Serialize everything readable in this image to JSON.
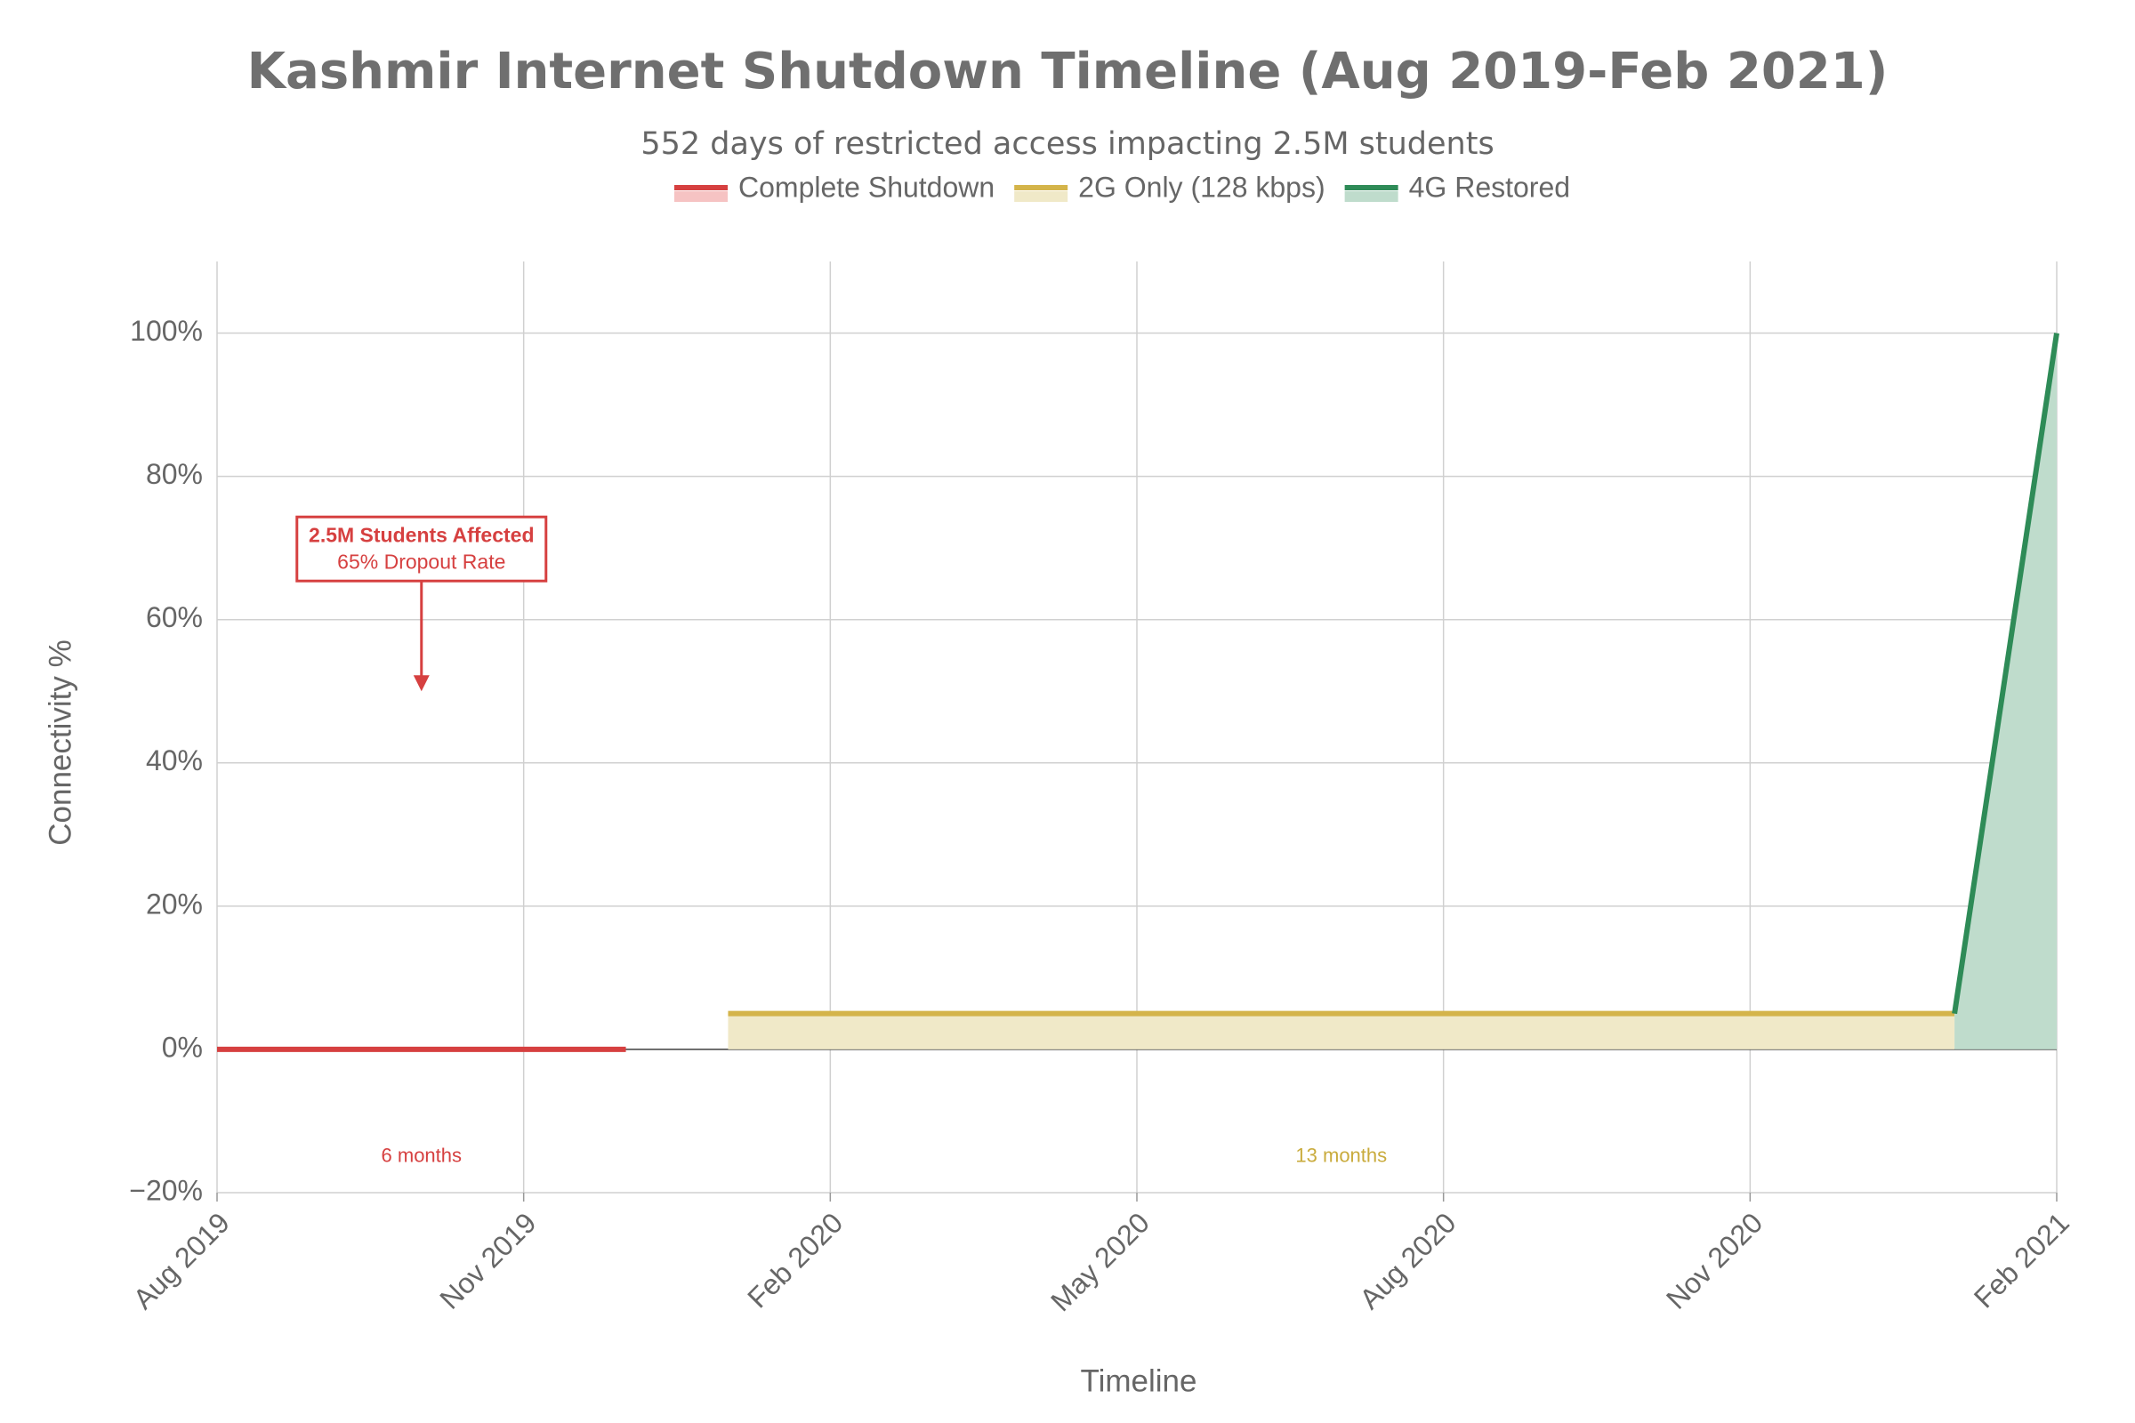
{
  "chart_data": {
    "type": "line",
    "title": "Kashmir Internet Shutdown Timeline (Aug 2019-Feb 2021)",
    "subtitle": "552 days of restricted access impacting 2.5M students",
    "x_label": "Timeline",
    "y_label": "Connectivity %",
    "xlim": [
      "2019-08",
      "2021-02"
    ],
    "xticks": [
      {
        "value": "2019-08",
        "label": "Aug 2019"
      },
      {
        "value": "2019-11",
        "label": "Nov 2019"
      },
      {
        "value": "2020-02",
        "label": "Feb 2020"
      },
      {
        "value": "2020-05",
        "label": "May 2020"
      },
      {
        "value": "2020-08",
        "label": "Aug 2020"
      },
      {
        "value": "2020-11",
        "label": "Nov 2020"
      },
      {
        "value": "2021-02",
        "label": "Feb 2021"
      }
    ],
    "ylim": [
      -20,
      110
    ],
    "yticks": [
      {
        "value": -20,
        "label": "−20%"
      },
      {
        "value": 0,
        "label": "0%"
      },
      {
        "value": 20,
        "label": "20%"
      },
      {
        "value": 40,
        "label": "40%"
      },
      {
        "value": 60,
        "label": "60%"
      },
      {
        "value": 80,
        "label": "80%"
      },
      {
        "value": 100,
        "label": "100%"
      }
    ],
    "grid": true,
    "series": [
      {
        "name": "Complete Shutdown",
        "color": "#d64040",
        "fill_color": "#f6c3c3",
        "x": [
          "2019-08",
          "2019-12"
        ],
        "values": [
          0,
          0
        ]
      },
      {
        "name": "2G Only (128 kbps)",
        "color": "#d4b44a",
        "fill_color": "#f0e9c8",
        "x": [
          "2020-01",
          "2021-01"
        ],
        "values": [
          5,
          5
        ]
      },
      {
        "name": "4G Restored",
        "color": "#2e8b57",
        "fill_color": "#bfdccc",
        "x": [
          "2021-01",
          "2021-02"
        ],
        "values": [
          5,
          100
        ]
      }
    ],
    "annotations": [
      {
        "text": "2.5M Students Affected",
        "subtext": "65% Dropout Rate",
        "x": "2019-10",
        "y": 50,
        "color": "#d64040"
      },
      {
        "text": "6 months",
        "x": "2019-10",
        "y": -15,
        "color": "#d64040"
      },
      {
        "text": "13 months",
        "x": "2020-07",
        "y": -15,
        "color": "#c9ab3c"
      }
    ]
  }
}
